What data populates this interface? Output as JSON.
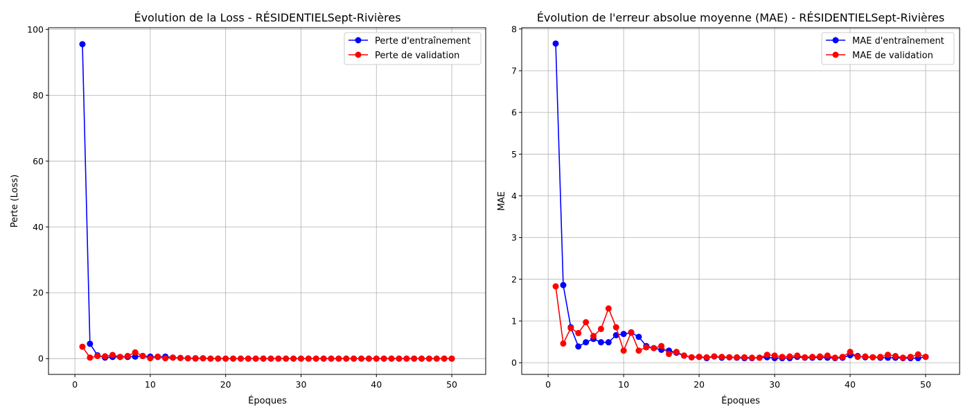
{
  "chart_data": [
    {
      "type": "line",
      "title": "Évolution de la Loss - RÉSIDENTIELSept-Rivières",
      "xlabel": "Époques",
      "ylabel": "Perte (Loss)",
      "xlim": [
        -3.5,
        54.5
      ],
      "ylim": [
        -4.8,
        100.5
      ],
      "xticks": [
        "0",
        "10",
        "20",
        "30",
        "40",
        "50"
      ],
      "yticks": [
        "0",
        "20",
        "40",
        "60",
        "80",
        "100"
      ],
      "grid": true,
      "legend_position": "top-right",
      "x": [
        1,
        2,
        3,
        4,
        5,
        6,
        7,
        8,
        9,
        10,
        11,
        12,
        13,
        14,
        15,
        16,
        17,
        18,
        19,
        20,
        21,
        22,
        23,
        24,
        25,
        26,
        27,
        28,
        29,
        30,
        31,
        32,
        33,
        34,
        35,
        36,
        37,
        38,
        39,
        40,
        41,
        42,
        43,
        44,
        45,
        46,
        47,
        48,
        49,
        50
      ],
      "series": [
        {
          "name": "Perte d'entraînement",
          "color": "#0000ff",
          "values": [
            95.5,
            4.5,
            1.0,
            0.3,
            0.5,
            0.5,
            0.5,
            0.6,
            0.8,
            0.6,
            0.5,
            0.6,
            0.3,
            0.2,
            0.1,
            0.1,
            0.1,
            0.0,
            0.0,
            0.0,
            0.0,
            0.0,
            0.0,
            0.0,
            0.0,
            0.0,
            0.0,
            0.0,
            0.0,
            0.0,
            0.0,
            0.0,
            0.0,
            0.0,
            0.0,
            0.0,
            0.0,
            0.0,
            0.0,
            0.0,
            0.0,
            0.0,
            0.0,
            0.0,
            0.0,
            0.0,
            0.0,
            0.0,
            0.0,
            0.0
          ]
        },
        {
          "name": "Perte de validation",
          "color": "#ff0000",
          "values": [
            3.6,
            0.3,
            0.8,
            0.7,
            1.1,
            0.5,
            0.8,
            1.9,
            0.8,
            0.1,
            0.6,
            0.1,
            0.3,
            0.2,
            0.1,
            0.0,
            0.1,
            0.0,
            0.0,
            0.0,
            0.0,
            0.0,
            0.0,
            0.0,
            0.0,
            0.0,
            0.0,
            0.0,
            0.0,
            0.0,
            0.0,
            0.0,
            0.0,
            0.0,
            0.0,
            0.0,
            0.0,
            0.0,
            0.0,
            0.0,
            0.0,
            0.0,
            0.0,
            0.0,
            0.0,
            0.0,
            0.0,
            0.0,
            0.0,
            0.0
          ]
        }
      ]
    },
    {
      "type": "line",
      "title": "Évolution de l'erreur absolue moyenne (MAE) - RÉSIDENTIELSept-Rivières",
      "xlabel": "Époques",
      "ylabel": "MAE",
      "xlim": [
        -3.5,
        54.5
      ],
      "ylim": [
        -0.28,
        8.03
      ],
      "xticks": [
        "0",
        "10",
        "20",
        "30",
        "40",
        "50"
      ],
      "yticks": [
        "0",
        "1",
        "2",
        "3",
        "4",
        "5",
        "6",
        "7",
        "8"
      ],
      "grid": true,
      "legend_position": "top-right",
      "x": [
        1,
        2,
        3,
        4,
        5,
        6,
        7,
        8,
        9,
        10,
        11,
        12,
        13,
        14,
        15,
        16,
        17,
        18,
        19,
        20,
        21,
        22,
        23,
        24,
        25,
        26,
        27,
        28,
        29,
        30,
        31,
        32,
        33,
        34,
        35,
        36,
        37,
        38,
        39,
        40,
        41,
        42,
        43,
        44,
        45,
        46,
        47,
        48,
        49,
        50
      ],
      "series": [
        {
          "name": "MAE d'entraînement",
          "color": "#0000ff",
          "values": [
            7.65,
            1.86,
            0.85,
            0.39,
            0.49,
            0.57,
            0.49,
            0.49,
            0.66,
            0.69,
            0.72,
            0.62,
            0.4,
            0.35,
            0.31,
            0.29,
            0.24,
            0.17,
            0.13,
            0.14,
            0.11,
            0.15,
            0.12,
            0.13,
            0.12,
            0.11,
            0.11,
            0.12,
            0.13,
            0.11,
            0.11,
            0.11,
            0.14,
            0.12,
            0.12,
            0.13,
            0.12,
            0.11,
            0.12,
            0.18,
            0.16,
            0.13,
            0.13,
            0.12,
            0.12,
            0.12,
            0.11,
            0.11,
            0.11,
            0.14
          ]
        },
        {
          "name": "MAE de validation",
          "color": "#ff0000",
          "values": [
            1.83,
            0.46,
            0.83,
            0.71,
            0.97,
            0.64,
            0.81,
            1.3,
            0.85,
            0.29,
            0.73,
            0.29,
            0.37,
            0.35,
            0.4,
            0.21,
            0.26,
            0.17,
            0.13,
            0.14,
            0.13,
            0.15,
            0.14,
            0.13,
            0.13,
            0.13,
            0.12,
            0.12,
            0.19,
            0.17,
            0.14,
            0.15,
            0.17,
            0.13,
            0.14,
            0.15,
            0.17,
            0.12,
            0.14,
            0.26,
            0.14,
            0.15,
            0.13,
            0.14,
            0.19,
            0.16,
            0.12,
            0.14,
            0.2,
            0.14
          ]
        }
      ]
    }
  ]
}
